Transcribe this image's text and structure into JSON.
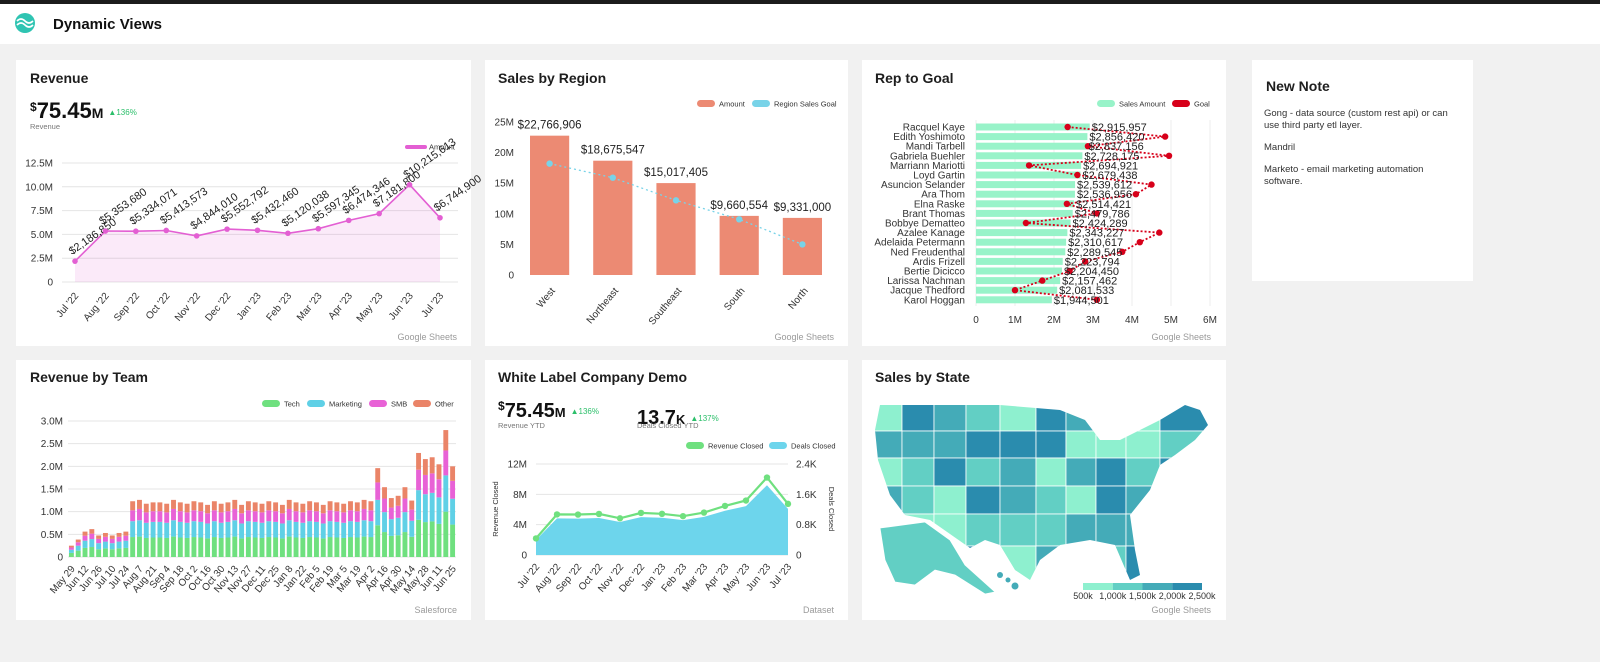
{
  "header": {
    "title": "Dynamic Views"
  },
  "note": {
    "title": "New Note",
    "paragraphs": [
      "Gong - data source (custom rest api) or can use third party etl layer.",
      "Mandril",
      "Marketo - email marketing automation software."
    ]
  },
  "chart_data": [
    {
      "type": "line",
      "title": "Revenue",
      "source": "Google Sheets",
      "kpi": {
        "currency": "$",
        "value": "75.45",
        "unit": "M",
        "change": "▲136%",
        "label": "Revenue"
      },
      "categories": [
        "Jul '22",
        "Aug '22",
        "Sep '22",
        "Oct '22",
        "Nov '22",
        "Dec '22",
        "Jan '23",
        "Feb '23",
        "Mar '23",
        "Apr '23",
        "May '23",
        "Jun '23",
        "Jul '23"
      ],
      "series": [
        {
          "name": "Amount",
          "color": "#e35fd3",
          "values": [
            2186850,
            5353680,
            5334071,
            5413573,
            4844010,
            5552792,
            5432460,
            5120038,
            5597345,
            6474346,
            7181800,
            10215613,
            6744900
          ],
          "value_labels": [
            "$2,186,850",
            "$5,353,680",
            "$5,334,071",
            "$5,413,573",
            "$4,844,010",
            "$5,552,792",
            "$5,432,460",
            "$5,120,038",
            "$5,597,345",
            "$6,474,346",
            "$7,181,800",
            "$10,215,613",
            "$6,744,900"
          ]
        }
      ],
      "ylim": [
        0,
        12500000
      ],
      "yticks": [
        0,
        {
          "value": 2500000,
          "label": "2.5M"
        },
        {
          "value": 5000000,
          "label": "5.0M"
        },
        {
          "value": 7500000,
          "label": "7.5M"
        },
        {
          "value": 10000000,
          "label": "10.0M"
        },
        {
          "value": 12500000,
          "label": "12.5M"
        }
      ],
      "grid": true,
      "area": true
    },
    {
      "type": "bar",
      "title": "Sales by Region",
      "source": "Google Sheets",
      "categories": [
        "West",
        "Northeast",
        "Southeast",
        "South",
        "North"
      ],
      "series": [
        {
          "name": "Amount",
          "color": "#ec8a73",
          "mark": "bar",
          "values": [
            22766906,
            18675547,
            15017405,
            9660554,
            9331000
          ],
          "value_labels": [
            "$22,766,906",
            "$18,675,547",
            "$15,017,405",
            "$9,660,554",
            "$9,331,000"
          ]
        },
        {
          "name": "Region Sales Goal",
          "color": "#78d3e8",
          "mark": "line",
          "values": [
            18200000,
            15900000,
            12200000,
            9100000,
            5000000
          ]
        }
      ],
      "ylim": [
        0,
        25000000
      ],
      "yticks": [
        0,
        {
          "value": 5000000,
          "label": "5M"
        },
        {
          "value": 10000000,
          "label": "10M"
        },
        {
          "value": 15000000,
          "label": "15M"
        },
        {
          "value": 20000000,
          "label": "20M"
        },
        {
          "value": 25000000,
          "label": "25M"
        }
      ]
    },
    {
      "type": "barh",
      "title": "Rep to Goal",
      "source": "Google Sheets",
      "categories": [
        "Racquel Kaye",
        "Edith Yoshimoto",
        "Mandi Tarbell",
        "Gabriela Buehler",
        "Marriann Mariotti",
        "Loyd Gartin",
        "Asuncion Selander",
        "Ara Thom",
        "Elna Raske",
        "Brant Thomas",
        "Bobbye Dematteo",
        "Azalee Kanage",
        "Adelaida Petermann",
        "Ned Freudenthal",
        "Ardis Frizell",
        "Bertie Dicicco",
        "Larissa Nachman",
        "Jacque Thedford",
        "Karol Hoggan"
      ],
      "series": [
        {
          "name": "Sales Amount",
          "color": "#98f3c9",
          "mark": "bar",
          "values": [
            2915957,
            2856420,
            2837156,
            2728175,
            2694921,
            2679438,
            2539612,
            2536956,
            2514421,
            2479786,
            2424289,
            2343227,
            2310617,
            2289545,
            2223794,
            2204450,
            2157462,
            2081533,
            1944501
          ],
          "value_labels": [
            "$2,915,957",
            "$2,856,420",
            "$2,837,156",
            "$2,728,175",
            "$2,694,921",
            "$2,679,438",
            "$2,539,612",
            "$2,536,956",
            "$2,514,421",
            "$2,479,786",
            "$2,424,289",
            "$2,343,227",
            "$2,310,617",
            "$2,289,545",
            "$2,223,794",
            "$2,204,450",
            "$2,157,462",
            "$2,081,533",
            "$1,944,501"
          ]
        },
        {
          "name": "Goal",
          "color": "#d7001a",
          "mark": "line",
          "values": [
            2350000,
            4850000,
            2870000,
            4950000,
            1360000,
            2600000,
            4500000,
            4100000,
            2330000,
            3100000,
            1280000,
            4700000,
            4200000,
            3750000,
            2800000,
            2400000,
            1700000,
            1000000,
            3100000
          ]
        }
      ],
      "xlim": [
        0,
        6000000
      ],
      "xticks": [
        0,
        {
          "value": 1000000,
          "label": "1M"
        },
        {
          "value": 2000000,
          "label": "2M"
        },
        {
          "value": 3000000,
          "label": "3M"
        },
        {
          "value": 4000000,
          "label": "4M"
        },
        {
          "value": 5000000,
          "label": "5M"
        },
        {
          "value": 6000000,
          "label": "6M"
        }
      ],
      "grid": true
    },
    {
      "type": "stacked",
      "title": "Revenue by Team",
      "source": "Salesforce",
      "categories": [
        "May 29",
        null,
        "Jun 12",
        null,
        "Jun 26",
        null,
        "Jul 10",
        null,
        "Jul 24",
        null,
        "Aug 7",
        null,
        "Aug 21",
        null,
        "Sep 4",
        null,
        "Sep 18",
        null,
        "Oct 2",
        null,
        "Oct 16",
        null,
        "Oct 30",
        null,
        "Nov 13",
        null,
        "Nov 27",
        null,
        "Dec 11",
        null,
        "Dec 25",
        null,
        "Jan 8",
        null,
        "Jan 22",
        null,
        "Feb 5",
        null,
        "Feb 19",
        null,
        "Mar 5",
        null,
        "Mar 19",
        null,
        "Apr 2",
        null,
        "Apr 16",
        null,
        "Apr 30",
        null,
        "May 14",
        null,
        "May 28",
        null,
        "Jun 11",
        null,
        "Jun 25"
      ],
      "series": [
        {
          "name": "Tech",
          "color": "#6fe07f",
          "values": [
            0.09,
            0.14,
            0.2,
            0.22,
            0.17,
            0.19,
            0.17,
            0.19,
            0.2,
            0.44,
            0.45,
            0.42,
            0.43,
            0.43,
            0.42,
            0.45,
            0.43,
            0.42,
            0.44,
            0.43,
            0.41,
            0.44,
            0.42,
            0.43,
            0.45,
            0.41,
            0.44,
            0.43,
            0.42,
            0.44,
            0.43,
            0.41,
            0.45,
            0.43,
            0.42,
            0.44,
            0.43,
            0.41,
            0.44,
            0.43,
            0.42,
            0.44,
            0.43,
            0.45,
            0.44,
            0.7,
            0.55,
            0.465,
            0.48,
            0.55,
            0.445,
            0.82,
            0.77,
            0.785,
            0.73,
            1.0,
            0.715
          ]
        },
        {
          "name": "Marketing",
          "color": "#5fd0e6",
          "values": [
            0.07,
            0.11,
            0.16,
            0.175,
            0.135,
            0.15,
            0.135,
            0.15,
            0.16,
            0.35,
            0.36,
            0.335,
            0.345,
            0.345,
            0.335,
            0.36,
            0.345,
            0.335,
            0.35,
            0.345,
            0.33,
            0.35,
            0.335,
            0.345,
            0.36,
            0.33,
            0.35,
            0.345,
            0.335,
            0.35,
            0.345,
            0.33,
            0.36,
            0.345,
            0.335,
            0.35,
            0.345,
            0.33,
            0.35,
            0.345,
            0.335,
            0.35,
            0.345,
            0.36,
            0.35,
            0.56,
            0.44,
            0.37,
            0.385,
            0.44,
            0.355,
            0.655,
            0.615,
            0.63,
            0.585,
            0.8,
            0.57
          ]
        },
        {
          "name": "SMB",
          "color": "#e862d6",
          "values": [
            0.05,
            0.075,
            0.11,
            0.12,
            0.095,
            0.105,
            0.095,
            0.105,
            0.11,
            0.24,
            0.25,
            0.23,
            0.235,
            0.235,
            0.23,
            0.25,
            0.235,
            0.23,
            0.24,
            0.235,
            0.225,
            0.24,
            0.23,
            0.235,
            0.25,
            0.225,
            0.24,
            0.235,
            0.23,
            0.24,
            0.235,
            0.225,
            0.25,
            0.235,
            0.23,
            0.24,
            0.235,
            0.225,
            0.24,
            0.235,
            0.23,
            0.24,
            0.235,
            0.25,
            0.24,
            0.385,
            0.3,
            0.255,
            0.265,
            0.3,
            0.245,
            0.45,
            0.425,
            0.43,
            0.4,
            0.55,
            0.395
          ]
        },
        {
          "name": "Other",
          "color": "#ea8468",
          "values": [
            0.04,
            0.06,
            0.09,
            0.1,
            0.075,
            0.085,
            0.075,
            0.085,
            0.09,
            0.2,
            0.2,
            0.19,
            0.195,
            0.195,
            0.19,
            0.2,
            0.195,
            0.19,
            0.2,
            0.195,
            0.185,
            0.2,
            0.19,
            0.195,
            0.2,
            0.185,
            0.2,
            0.195,
            0.19,
            0.2,
            0.195,
            0.185,
            0.2,
            0.195,
            0.19,
            0.2,
            0.195,
            0.185,
            0.2,
            0.195,
            0.19,
            0.2,
            0.195,
            0.2,
            0.2,
            0.315,
            0.25,
            0.21,
            0.22,
            0.25,
            0.2,
            0.37,
            0.35,
            0.355,
            0.33,
            0.45,
            0.32
          ]
        }
      ],
      "ylim": [
        0,
        3
      ],
      "yticks": [
        0,
        {
          "value": 0.5,
          "label": "0.5M"
        },
        {
          "value": 1,
          "label": "1.0M"
        },
        {
          "value": 1.5,
          "label": "1.5M"
        },
        {
          "value": 2,
          "label": "2.0M"
        },
        {
          "value": 2.5,
          "label": "2.5M"
        },
        {
          "value": 3,
          "label": "3.0M"
        }
      ],
      "grid": true
    },
    {
      "type": "area",
      "title": "White Label Company Demo",
      "source": "Dataset",
      "kpis": [
        {
          "currency": "$",
          "value": "75.45",
          "unit": "M",
          "change": "▲136%",
          "label": "Revenue YTD"
        },
        {
          "currency": "",
          "value": "13.7",
          "unit": "K",
          "change": "▲137%",
          "label": "Deals Closed YTD"
        }
      ],
      "y_label": "Revenue Closed",
      "y2_label": "Deals Closed",
      "categories": [
        "Jul '22",
        "Aug '22",
        "Sep '22",
        "Oct '22",
        "Nov '22",
        "Dec '22",
        "Jan '23",
        "Feb '23",
        "Mar '23",
        "Apr '23",
        "May '23",
        "Jun '23",
        "Jul '23"
      ],
      "series": [
        {
          "name": "Revenue Closed",
          "color": "#6fe07f",
          "values": [
            2186850,
            5353680,
            5334071,
            5413573,
            4844010,
            5552792,
            5432460,
            5120038,
            5597345,
            6474346,
            7181800,
            10215613,
            6744900
          ]
        },
        {
          "name": "Deals Closed",
          "color": "#6dd5ec",
          "axis": "y2",
          "values": [
            395,
            965,
            960,
            975,
            870,
            1000,
            980,
            920,
            1005,
            1165,
            1290,
            1840,
            1215
          ]
        }
      ],
      "ylim": [
        0,
        12000000
      ],
      "yticks": [
        0,
        {
          "value": 4000000,
          "label": "4M"
        },
        {
          "value": 8000000,
          "label": "8M"
        },
        {
          "value": 12000000,
          "label": "12M"
        }
      ],
      "y2lim": [
        0,
        2400
      ],
      "y2ticks": [
        0,
        {
          "value": 800,
          "label": "0.8K"
        },
        {
          "value": 1600,
          "label": "1.6K"
        },
        {
          "value": 2400,
          "label": "2.4K"
        }
      ],
      "grid": true
    },
    {
      "type": "choropleth",
      "title": "Sales by State",
      "source": "Google Sheets",
      "colorbar": {
        "colors": [
          "#8ef0cf",
          "#62cfc4",
          "#44abb8",
          "#2a8cae"
        ],
        "ticks": [
          {
            "value": 500000,
            "label": "500k"
          },
          {
            "value": 1000000,
            "label": "1,000k"
          },
          {
            "value": 1500000,
            "label": "1,500k"
          },
          {
            "value": 2000000,
            "label": "2,000k"
          },
          {
            "value": 2500000,
            "label": "2,500k"
          }
        ]
      }
    }
  ]
}
